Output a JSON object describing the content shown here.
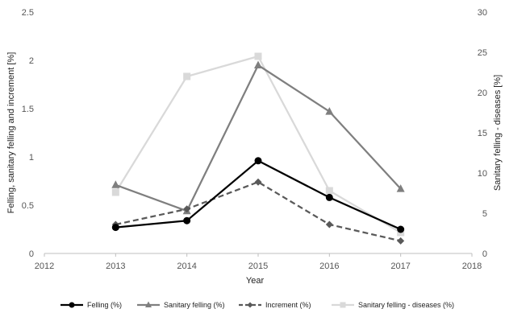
{
  "chart_data": {
    "type": "line",
    "xlabel": "Year",
    "ylabel_left": "Felling, sanitary felling and increment [%]",
    "ylabel_right": "Sanitary felling - diseases [%]",
    "xlim": [
      2012,
      2018
    ],
    "xticks": [
      "2012",
      "2013",
      "2014",
      "2015",
      "2016",
      "2017",
      "2018"
    ],
    "ylim_left": [
      0,
      2.5
    ],
    "yticks_left": [
      "0",
      "0.5",
      "1",
      "1.5",
      "2",
      "2.5"
    ],
    "ylim_right": [
      0,
      30
    ],
    "yticks_right": [
      "0",
      "5",
      "10",
      "15",
      "20",
      "25",
      "30"
    ],
    "grid": false,
    "legend_position": "bottom",
    "x": [
      2013,
      2014,
      2015,
      2016,
      2017
    ],
    "series": [
      {
        "name": "Felling (%)",
        "axis": "left",
        "color": "#000000",
        "dash": false,
        "marker": "circle",
        "values": [
          0.27,
          0.34,
          0.96,
          0.58,
          0.25
        ]
      },
      {
        "name": "Sanitary felling (%)",
        "axis": "left",
        "color": "#7f7f7f",
        "dash": false,
        "marker": "triangle",
        "values": [
          0.71,
          0.44,
          1.95,
          1.47,
          0.67
        ]
      },
      {
        "name": "Increment (%)",
        "axis": "left",
        "color": "#595959",
        "dash": true,
        "marker": "diamond",
        "values": [
          0.3,
          0.46,
          0.74,
          0.3,
          0.13
        ]
      },
      {
        "name": "Sanitary felling - diseases (%)",
        "axis": "right",
        "color": "#d9d9d9",
        "dash": false,
        "marker": "square",
        "values": [
          7.6,
          22.0,
          24.5,
          7.8,
          2.6
        ]
      }
    ]
  }
}
